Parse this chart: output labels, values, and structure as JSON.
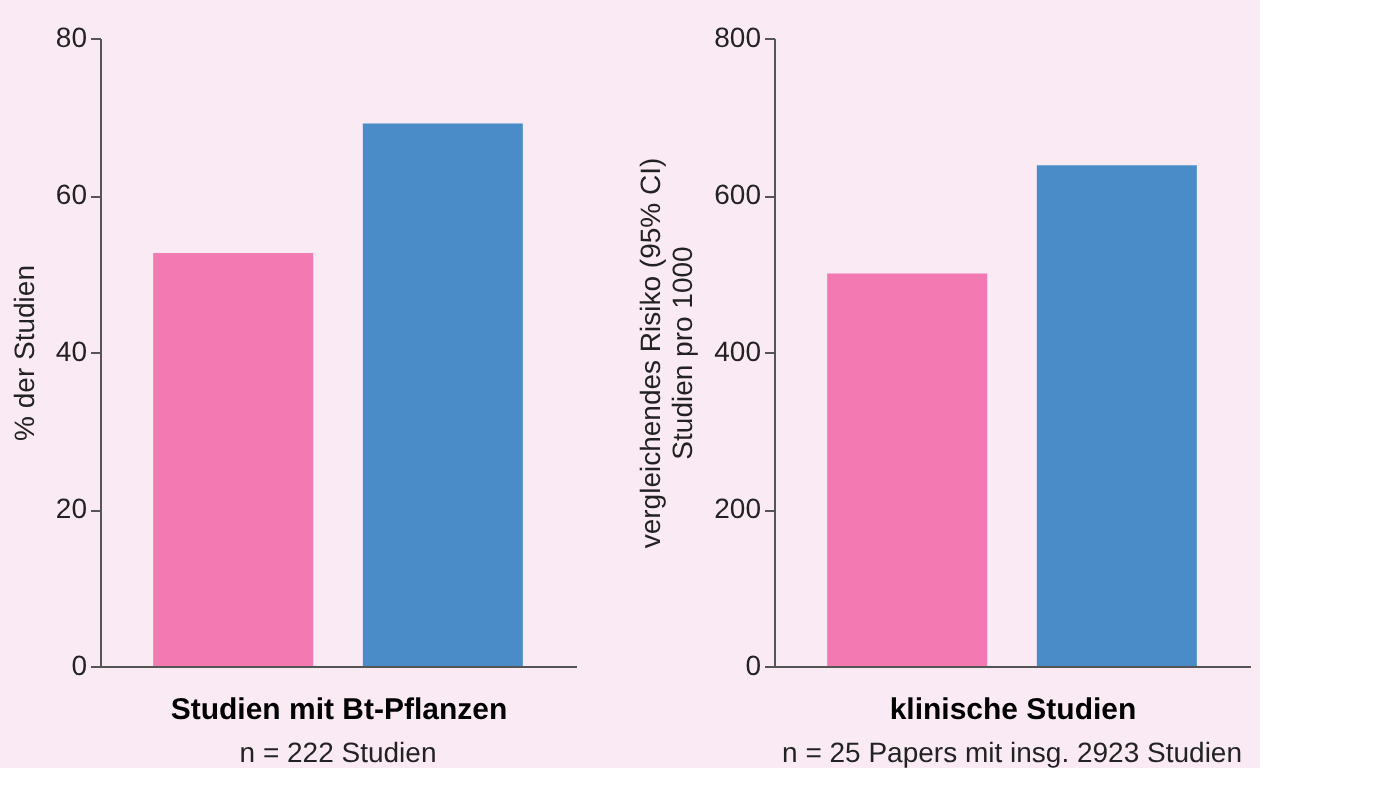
{
  "chart_data": [
    {
      "type": "bar",
      "categories": [
        null,
        null
      ],
      "values": [
        52.6,
        69.1
      ],
      "colors": [
        "#f279b2",
        "#4a8cc8"
      ],
      "xlabel": "Studien mit Bt-Pflanzen",
      "ylabel": "% der Studien",
      "ylim": [
        0,
        80
      ],
      "yticks": [
        0,
        20,
        40,
        60,
        80
      ],
      "grid": false,
      "tick_labels": "y",
      "annotations": [
        "n = 222 Studien"
      ]
    },
    {
      "type": "bar",
      "categories": [
        null,
        null
      ],
      "values": [
        500,
        638
      ],
      "colors": [
        "#f279b2",
        "#4a8cc8"
      ],
      "xlabel": "klinische Studien",
      "ylabel": "vergleichendes Risiko (95% CI)\nStudien pro 1000",
      "ylim": [
        0,
        800
      ],
      "yticks": [
        0,
        200,
        400,
        600,
        800
      ],
      "grid": false,
      "tick_labels": "y",
      "annotations": [
        "n = 25 Papers mit insg. 2923 Studien"
      ]
    }
  ]
}
